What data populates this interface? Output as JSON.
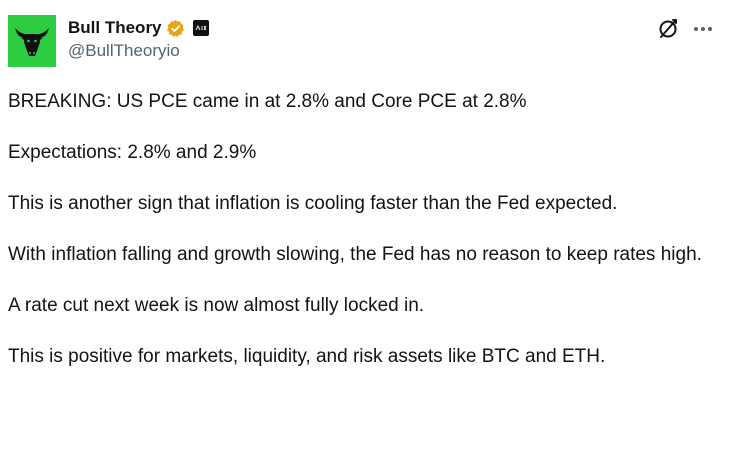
{
  "author": {
    "display_name": "Bull Theory",
    "handle": "@BullTheoryio",
    "avatar_color": "#2ecc40",
    "verified_color": "#e8a317"
  },
  "icons": {
    "verified": "verified-badge-icon",
    "affiliate": "affiliate-badge-icon",
    "grok": "grok-icon",
    "more": "more-icon"
  },
  "tweet": {
    "paragraphs": [
      "BREAKING: US PCE came in at 2.8% and Core PCE at 2.8%",
      "Expectations: 2.8% and 2.9%",
      "This is another sign that inflation is cooling faster than the Fed expected.",
      "With inflation falling and growth slowing, the Fed has no reason to keep rates high.",
      "A rate cut next week is now almost fully locked in.",
      "This is positive for markets, liquidity, and risk assets like BTC and ETH."
    ]
  }
}
